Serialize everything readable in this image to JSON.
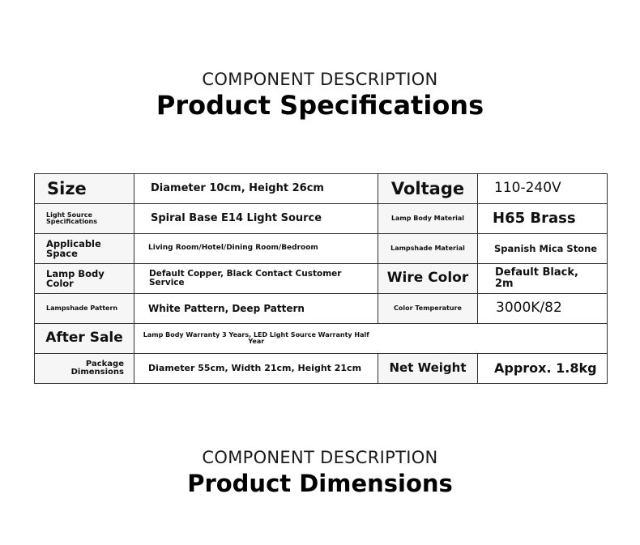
{
  "section1": {
    "kicker": "COMPONENT DESCRIPTION",
    "title": "Product Specifications"
  },
  "specs": {
    "size": {
      "label": "Size",
      "value": "Diameter 10cm, Height 26cm"
    },
    "voltage": {
      "label": "Voltage",
      "value": "110-240V"
    },
    "light_source": {
      "label": "Light Source Specifications",
      "value": "Spiral Base E14 Light Source"
    },
    "body_material": {
      "label": "Lamp Body Material",
      "value": "H65 Brass"
    },
    "space": {
      "label": "Applicable Space",
      "value": "Living Room/Hotel/Dining Room/Bedroom"
    },
    "shade_material": {
      "label": "Lampshade Material",
      "value": "Spanish Mica Stone"
    },
    "body_color": {
      "label": "Lamp Body Color",
      "value": "Default Copper, Black Contact Customer Service"
    },
    "wire_color": {
      "label": "Wire Color",
      "value": "Default Black, 2m"
    },
    "shade_pattern": {
      "label": "Lampshade Pattern",
      "value": "White Pattern, Deep Pattern"
    },
    "color_temp": {
      "label": "Color Temperature",
      "value": "3000K/82"
    },
    "after_sale": {
      "label": "After Sale",
      "value": "Lamp Body Warranty 3 Years, LED Light Source Warranty Half Year"
    },
    "package": {
      "label": "Package Dimensions",
      "value": "Diameter 55cm, Width 21cm, Height 21cm"
    },
    "net_weight": {
      "label": "Net Weight",
      "value": "Approx. 1.8kg"
    }
  },
  "section2": {
    "kicker": "COMPONENT DESCRIPTION",
    "title": "Product Dimensions"
  }
}
